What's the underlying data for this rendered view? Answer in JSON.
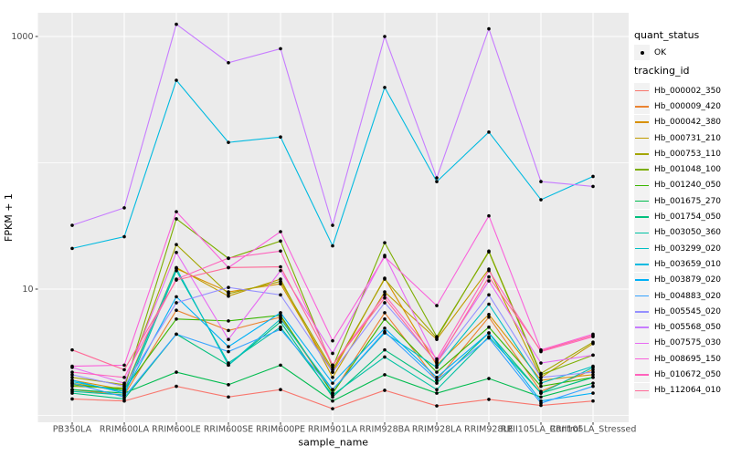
{
  "figure": {
    "panel_bg": "#EBEBEB",
    "grid_color": "#FFFFFF",
    "axis_text_color": "#4D4D4D",
    "axis_title_color": "#000000",
    "tick_color": "#333333",
    "point_color": "#000000"
  },
  "chart_data": {
    "type": "line",
    "title": "",
    "xlabel": "sample_name",
    "ylabel": "FPKM + 1",
    "y_scale": "log10",
    "ylim": [
      1,
      1400
    ],
    "y_ticks": [
      {
        "value": 10,
        "label": "10"
      },
      {
        "value": 1000,
        "label": "1000"
      }
    ],
    "y_minor_gridlines": [
      1,
      100
    ],
    "grid": true,
    "legend_position": "right",
    "x_categories": [
      "PB350LA",
      "RRIM600LA",
      "RRIM600LE",
      "RRIM600SE",
      "RRIM600PE",
      "RRIM901LA",
      "RRIM928BA",
      "RRIM928LA",
      "RRIM928LE",
      "RRII105LA_Control",
      "RRII105LA_Stressed"
    ],
    "series": [
      {
        "name": "Hb_000002_350",
        "color": "#F8766D",
        "values": [
          1.35,
          1.3,
          1.7,
          1.4,
          1.6,
          1.13,
          1.58,
          1.19,
          1.34,
          1.2,
          1.3
        ]
      },
      {
        "name": "Hb_000009_420",
        "color": "#EA8331",
        "values": [
          1.6,
          1.45,
          6.8,
          4.7,
          6.0,
          1.5,
          6.5,
          1.9,
          6.0,
          1.55,
          2.3
        ]
      },
      {
        "name": "Hb_000042_380",
        "color": "#D89000",
        "values": [
          1.9,
          1.6,
          14.5,
          9.5,
          11.0,
          2.2,
          12.2,
          2.5,
          6.3,
          1.9,
          2.1
        ]
      },
      {
        "name": "Hb_000731_210",
        "color": "#C09B00",
        "values": [
          1.8,
          1.55,
          14.8,
          8.8,
          12.0,
          2.0,
          9.5,
          4.0,
          14.4,
          2.0,
          3.7
        ]
      },
      {
        "name": "Hb_000753_110",
        "color": "#A3A500",
        "values": [
          2.0,
          1.75,
          22.5,
          9.2,
          11.5,
          2.3,
          12.0,
          4.1,
          20.0,
          2.15,
          3.8
        ]
      },
      {
        "name": "Hb_001048_100",
        "color": "#7CAE00",
        "values": [
          1.7,
          1.65,
          36,
          17.5,
          24,
          2.4,
          23.3,
          4.2,
          19.7,
          2.1,
          3.0
        ]
      },
      {
        "name": "Hb_001240_050",
        "color": "#39B600",
        "values": [
          1.75,
          1.6,
          5.8,
          5.6,
          6.2,
          1.5,
          5.8,
          2.2,
          5.0,
          1.7,
          2.0
        ]
      },
      {
        "name": "Hb_001675_270",
        "color": "#00BB4E",
        "values": [
          1.6,
          1.5,
          2.2,
          1.75,
          2.5,
          1.3,
          2.1,
          1.5,
          1.96,
          1.4,
          1.8
        ]
      },
      {
        "name": "Hb_001754_050",
        "color": "#00BF7D",
        "values": [
          1.5,
          1.35,
          4.4,
          2.5,
          5.5,
          1.4,
          3.3,
          1.8,
          4.5,
          1.5,
          2.0
        ]
      },
      {
        "name": "Hb_003050_360",
        "color": "#00C1A3",
        "values": [
          1.55,
          1.45,
          14.0,
          2.6,
          5.0,
          1.45,
          2.9,
          1.6,
          4.2,
          1.5,
          2.4
        ]
      },
      {
        "name": "Hb_003299_020",
        "color": "#00BFC4",
        "values": [
          1.85,
          1.55,
          14.6,
          2.5,
          5.8,
          1.6,
          4.5,
          2.4,
          7.6,
          1.8,
          2.45
        ]
      },
      {
        "name": "Hb_003659_010",
        "color": "#00BAE0",
        "values": [
          21,
          26,
          450,
          145,
          160,
          22,
          395,
          71,
          175,
          51,
          78
        ]
      },
      {
        "name": "Hb_003879_020",
        "color": "#00B0F6",
        "values": [
          1.9,
          1.5,
          8.7,
          3.5,
          6.5,
          1.8,
          4.9,
          2.0,
          4.5,
          1.3,
          1.5
        ]
      },
      {
        "name": "Hb_004883_020",
        "color": "#35A2FF",
        "values": [
          1.8,
          1.4,
          4.4,
          3.2,
          4.8,
          1.6,
          4.6,
          1.9,
          4.1,
          1.25,
          1.7
        ]
      },
      {
        "name": "Hb_005545_020",
        "color": "#9590FF",
        "values": [
          2.1,
          1.7,
          7.8,
          10.3,
          9.0,
          2.2,
          7.8,
          2.64,
          9.0,
          2.0,
          2.2
        ]
      },
      {
        "name": "Hb_005568_050",
        "color": "#C77CFF",
        "values": [
          32,
          44,
          1250,
          620,
          800,
          32,
          1000,
          76,
          1150,
          71,
          65
        ]
      },
      {
        "name": "Hb_007575_030",
        "color": "#E76BF3",
        "values": [
          2.4,
          1.8,
          19.5,
          4.0,
          14.0,
          3.1,
          18.5,
          2.7,
          11.6,
          2.6,
          3.0
        ]
      },
      {
        "name": "Hb_008695_150",
        "color": "#FA62DB",
        "values": [
          2.45,
          2.5,
          41,
          14.8,
          28.5,
          3.9,
          18.0,
          7.4,
          38,
          3.3,
          4.4
        ]
      },
      {
        "name": "Hb_010672_050",
        "color": "#FF62BC",
        "values": [
          2.2,
          2.0,
          12.0,
          17.6,
          20.0,
          2.5,
          9.0,
          2.8,
          14.0,
          3.2,
          4.2
        ]
      },
      {
        "name": "Hb_112064_010",
        "color": "#FF6A98",
        "values": [
          3.3,
          2.3,
          11.8,
          14.8,
          15.0,
          2.5,
          8.5,
          2.6,
          12.5,
          3.25,
          4.3
        ]
      }
    ]
  },
  "legend": {
    "quant_status_title": "quant_status",
    "quant_status_items": [
      {
        "label": "OK",
        "marker": "point"
      }
    ],
    "tracking_id_title": "tracking_id"
  }
}
